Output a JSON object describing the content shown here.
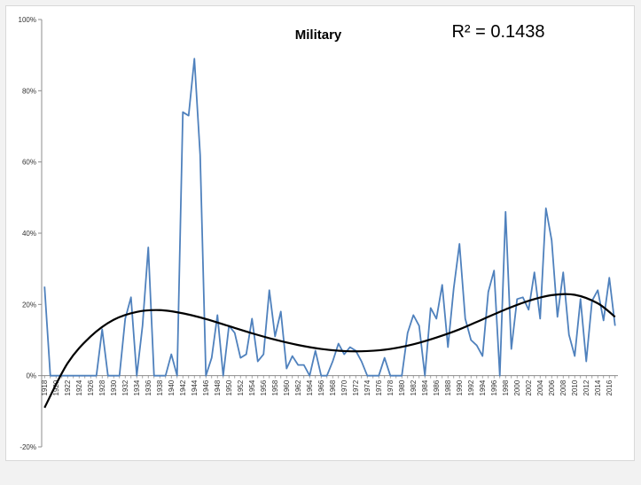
{
  "chart_data": {
    "type": "line",
    "title": "Military",
    "annotation": "R² = 0.1438",
    "ylim": [
      -0.2,
      1.0
    ],
    "y_ticks": [
      -0.2,
      0,
      0.2,
      0.4,
      0.6,
      0.8,
      1.0
    ],
    "y_tick_labels": [
      "-20%",
      "0%",
      "20%",
      "40%",
      "60%",
      "80%",
      "100%"
    ],
    "x_tick_labels": [
      "1918",
      "1920",
      "1922",
      "1924",
      "1926",
      "1928",
      "1930",
      "1932",
      "1934",
      "1936",
      "1938",
      "1940",
      "1942",
      "1944",
      "1946",
      "1948",
      "1950",
      "1952",
      "1954",
      "1956",
      "1958",
      "1960",
      "1962",
      "1964",
      "1966",
      "1968",
      "1970",
      "1972",
      "1974",
      "1976",
      "1978",
      "1980",
      "1982",
      "1984",
      "1986",
      "1988",
      "1990",
      "1992",
      "1994",
      "1996",
      "1998",
      "2000",
      "2002",
      "2004",
      "2006",
      "2008",
      "2010",
      "2012",
      "2014",
      "2016"
    ],
    "grid": false,
    "legend": "none",
    "series": [
      {
        "type": "line",
        "color": "#4f81bd",
        "x": [
          1918,
          1919,
          1920,
          1921,
          1922,
          1923,
          1924,
          1925,
          1926,
          1927,
          1928,
          1929,
          1930,
          1931,
          1932,
          1933,
          1934,
          1935,
          1936,
          1937,
          1938,
          1939,
          1940,
          1941,
          1942,
          1943,
          1944,
          1945,
          1946,
          1947,
          1948,
          1949,
          1950,
          1951,
          1952,
          1953,
          1954,
          1955,
          1956,
          1957,
          1958,
          1959,
          1960,
          1961,
          1962,
          1963,
          1964,
          1965,
          1966,
          1967,
          1968,
          1969,
          1970,
          1971,
          1972,
          1973,
          1974,
          1975,
          1976,
          1977,
          1978,
          1979,
          1980,
          1981,
          1982,
          1983,
          1984,
          1985,
          1986,
          1987,
          1988,
          1989,
          1990,
          1991,
          1992,
          1993,
          1994,
          1995,
          1996,
          1997,
          1998,
          1999,
          2000,
          2001,
          2002,
          2003,
          2004,
          2005,
          2006,
          2007,
          2008,
          2009,
          2010,
          2011,
          2012,
          2013,
          2014,
          2015,
          2016,
          2017
        ],
        "y": [
          0.25,
          0,
          0,
          0,
          0,
          0,
          0,
          0,
          0,
          0,
          0.13,
          0,
          0,
          0,
          0.16,
          0.22,
          0,
          0.14,
          0.36,
          0,
          0,
          0,
          0.06,
          0,
          0.74,
          0.73,
          0.89,
          0.62,
          0,
          0.05,
          0.17,
          0,
          0.14,
          0.12,
          0.05,
          0.06,
          0.16,
          0.04,
          0.06,
          0.24,
          0.11,
          0.18,
          0.02,
          0.055,
          0.03,
          0.03,
          0,
          0.07,
          0,
          0,
          0.04,
          0.09,
          0.06,
          0.08,
          0.07,
          0.04,
          0,
          0,
          0,
          0.05,
          0,
          0,
          0,
          0.12,
          0.17,
          0.14,
          0,
          0.19,
          0.16,
          0.255,
          0.08,
          0.245,
          0.37,
          0.16,
          0.1,
          0.085,
          0.055,
          0.235,
          0.295,
          0,
          0.46,
          0.075,
          0.215,
          0.22,
          0.185,
          0.29,
          0.16,
          0.47,
          0.38,
          0.165,
          0.29,
          0.115,
          0.055,
          0.215,
          0.04,
          0.21,
          0.24,
          0.155,
          0.275,
          0.14
        ]
      },
      {
        "type": "trendline",
        "color": "#000000",
        "x_range": [
          1918,
          2017
        ],
        "points": [
          [
            1918,
            -0.09
          ],
          [
            1922,
            0.035
          ],
          [
            1926,
            0.11
          ],
          [
            1930,
            0.157
          ],
          [
            1934,
            0.179
          ],
          [
            1938,
            0.184
          ],
          [
            1942,
            0.175
          ],
          [
            1946,
            0.159
          ],
          [
            1950,
            0.139
          ],
          [
            1954,
            0.119
          ],
          [
            1958,
            0.101
          ],
          [
            1962,
            0.086
          ],
          [
            1966,
            0.075
          ],
          [
            1970,
            0.069
          ],
          [
            1974,
            0.069
          ],
          [
            1978,
            0.075
          ],
          [
            1982,
            0.088
          ],
          [
            1986,
            0.107
          ],
          [
            1990,
            0.13
          ],
          [
            1994,
            0.158
          ],
          [
            1998,
            0.186
          ],
          [
            2002,
            0.21
          ],
          [
            2006,
            0.226
          ],
          [
            2010,
            0.227
          ],
          [
            2014,
            0.203
          ],
          [
            2017,
            0.165
          ]
        ]
      }
    ]
  }
}
